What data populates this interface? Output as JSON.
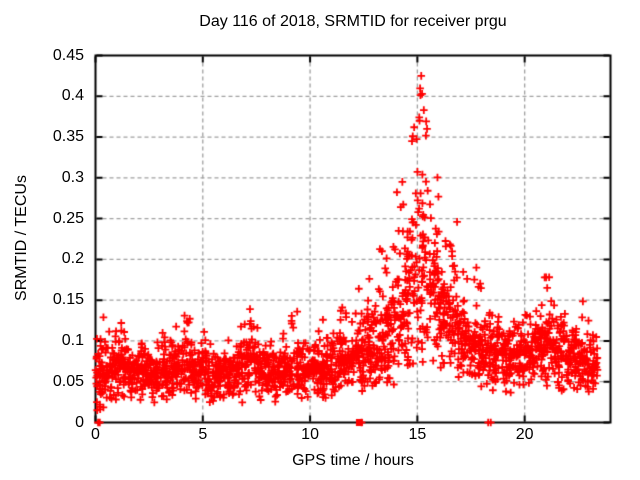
{
  "window": {
    "background": "#ffffff"
  },
  "colors": {
    "marker": "#ff0000",
    "grid": "#a0a0a0",
    "axis": "#000000",
    "text": "#000000",
    "background": "#ffffff"
  },
  "chart_data": {
    "type": "scatter",
    "title": "Day 116 of 2018, SRMTID for receiver prgu",
    "xlabel": "GPS time / hours",
    "ylabel": "SRMTID / TECUs",
    "xlim": [
      0,
      24
    ],
    "ylim": [
      0,
      0.45
    ],
    "xticks": {
      "values": [
        0,
        5,
        10,
        15,
        20
      ],
      "labels": [
        "0",
        "5",
        "10",
        "15",
        "20"
      ]
    },
    "yticks": {
      "values": [
        0,
        0.05,
        0.1,
        0.15,
        0.2,
        0.25,
        0.3,
        0.35,
        0.4,
        0.45
      ],
      "labels": [
        "0",
        "0.05",
        "0.1",
        "0.15",
        "0.2",
        "0.25",
        "0.3",
        "0.35",
        "0.4",
        "0.45"
      ]
    },
    "grid": {
      "show": true,
      "style": "dashed"
    },
    "legend": "none",
    "marker": {
      "shape": "plus",
      "color": "#ff0000",
      "size": 7
    },
    "series_name": "SRMTID",
    "random_seed": 2018116,
    "envelope_bins_format": "[t_start_hr, t_end_hr, n_points, y_min, y_median, y_max]",
    "envelope_bins": [
      [
        0,
        0.5,
        52,
        0.01,
        0.055,
        0.125
      ],
      [
        0.5,
        1,
        48,
        0.03,
        0.06,
        0.115
      ],
      [
        1,
        1.5,
        48,
        0.03,
        0.065,
        0.12
      ],
      [
        1.5,
        2,
        48,
        0.03,
        0.06,
        0.105
      ],
      [
        2,
        2.5,
        48,
        0.03,
        0.06,
        0.1
      ],
      [
        2.5,
        3,
        48,
        0.03,
        0.058,
        0.105
      ],
      [
        3,
        3.5,
        48,
        0.03,
        0.06,
        0.115
      ],
      [
        3.5,
        4,
        48,
        0.035,
        0.065,
        0.12
      ],
      [
        4,
        4.5,
        48,
        0.035,
        0.068,
        0.13
      ],
      [
        4.5,
        5,
        48,
        0.03,
        0.06,
        0.11
      ],
      [
        5,
        5.5,
        48,
        0.025,
        0.058,
        0.12
      ],
      [
        5.5,
        6,
        48,
        0.03,
        0.055,
        0.1
      ],
      [
        6,
        6.5,
        48,
        0.03,
        0.06,
        0.115
      ],
      [
        6.5,
        7,
        48,
        0.03,
        0.065,
        0.125
      ],
      [
        7,
        7.5,
        48,
        0.03,
        0.068,
        0.14
      ],
      [
        7.5,
        8,
        48,
        0.03,
        0.06,
        0.12
      ],
      [
        8,
        8.5,
        48,
        0.03,
        0.058,
        0.11
      ],
      [
        8.5,
        9,
        48,
        0.03,
        0.06,
        0.12
      ],
      [
        9,
        9.5,
        48,
        0.035,
        0.065,
        0.135
      ],
      [
        9.5,
        10,
        48,
        0.03,
        0.06,
        0.13
      ],
      [
        10,
        10.5,
        48,
        0.03,
        0.06,
        0.115
      ],
      [
        10.5,
        11,
        48,
        0.03,
        0.062,
        0.125
      ],
      [
        11,
        11.5,
        48,
        0.035,
        0.07,
        0.14
      ],
      [
        11.5,
        12,
        48,
        0.04,
        0.075,
        0.155
      ],
      [
        12,
        12.5,
        48,
        0.04,
        0.08,
        0.165
      ],
      [
        12.5,
        13,
        50,
        0.045,
        0.09,
        0.18
      ],
      [
        13,
        13.5,
        50,
        0.05,
        0.1,
        0.22
      ],
      [
        13.5,
        14,
        50,
        0.05,
        0.11,
        0.24
      ],
      [
        14,
        14.5,
        52,
        0.06,
        0.13,
        0.3
      ],
      [
        14.5,
        15,
        55,
        0.07,
        0.17,
        0.37
      ],
      [
        15,
        15.5,
        55,
        0.08,
        0.2,
        0.425
      ],
      [
        15.5,
        16,
        52,
        0.08,
        0.16,
        0.31
      ],
      [
        16,
        16.5,
        50,
        0.07,
        0.13,
        0.26
      ],
      [
        16.5,
        17,
        50,
        0.06,
        0.11,
        0.25
      ],
      [
        17,
        17.5,
        48,
        0.05,
        0.1,
        0.2
      ],
      [
        17.5,
        18,
        48,
        0.05,
        0.09,
        0.19
      ],
      [
        18,
        18.5,
        48,
        0.05,
        0.085,
        0.15
      ],
      [
        18.5,
        19,
        48,
        0.04,
        0.08,
        0.14
      ],
      [
        19,
        19.5,
        48,
        0.04,
        0.075,
        0.13
      ],
      [
        19.5,
        20,
        48,
        0.045,
        0.08,
        0.13
      ],
      [
        20,
        20.5,
        48,
        0.05,
        0.085,
        0.14
      ],
      [
        20.5,
        21,
        48,
        0.05,
        0.09,
        0.18
      ],
      [
        21,
        21.5,
        48,
        0.05,
        0.09,
        0.19
      ],
      [
        21.5,
        22,
        48,
        0.045,
        0.085,
        0.155
      ],
      [
        22,
        22.5,
        48,
        0.04,
        0.075,
        0.13
      ],
      [
        22.5,
        23,
        50,
        0.035,
        0.07,
        0.15
      ],
      [
        23,
        23.4,
        36,
        0.035,
        0.065,
        0.11
      ]
    ],
    "notable_points": [
      [
        0.08,
        0.015
      ],
      [
        0.37,
        0.129
      ],
      [
        1.2,
        0.122
      ],
      [
        4.15,
        0.131
      ],
      [
        7.2,
        0.139
      ],
      [
        9.4,
        0.136
      ],
      [
        10.6,
        0.126
      ],
      [
        11.5,
        0.141
      ],
      [
        13.35,
        0.21
      ],
      [
        14.3,
        0.295
      ],
      [
        14.75,
        0.345
      ],
      [
        14.85,
        0.362
      ],
      [
        15.1,
        0.37
      ],
      [
        15.18,
        0.425
      ],
      [
        15.22,
        0.403
      ],
      [
        15.3,
        0.383
      ],
      [
        15.45,
        0.36
      ],
      [
        16.85,
        0.246
      ],
      [
        17.75,
        0.19
      ],
      [
        21.0,
        0.178
      ],
      [
        21.05,
        0.165
      ]
    ],
    "zero_line_points": [
      {
        "x": 0.12,
        "style": "plus"
      },
      {
        "x": 0.2,
        "style": "plus"
      },
      {
        "x": 12.3,
        "style": "square"
      },
      {
        "x": 12.4,
        "style": "plus"
      },
      {
        "x": 18.3,
        "style": "plus"
      },
      {
        "x": 18.42,
        "style": "plus"
      }
    ]
  }
}
